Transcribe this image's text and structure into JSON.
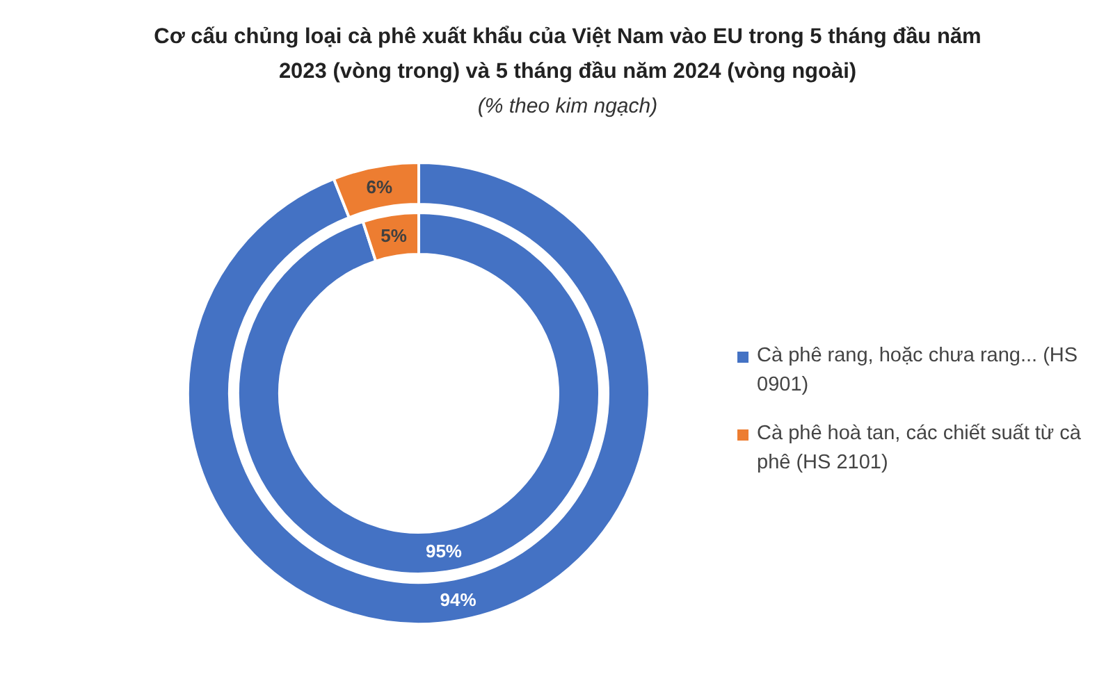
{
  "chart_data": {
    "type": "donut",
    "title": "Cơ cấu chủng loại cà phê xuất khẩu của Việt Nam vào EU trong 5 tháng đầu năm 2023 (vòng trong) và 5 tháng đầu năm 2024 (vòng ngoài)",
    "subtitle": "(% theo kim ngạch)",
    "categories": [
      "Cà phê rang, hoặc chưa rang... (HS 0901)",
      "Cà phê hoà tan, các chiết suất từ cà phê (HS 2101)"
    ],
    "colors": [
      "#4472c4",
      "#ed7d31"
    ],
    "legend": "right",
    "series": [
      {
        "values": [
          95,
          5
        ],
        "value_labels": [
          "95%",
          "5%"
        ]
      },
      {
        "values": [
          94,
          6
        ],
        "value_labels": [
          "94%",
          "6%"
        ]
      }
    ]
  }
}
